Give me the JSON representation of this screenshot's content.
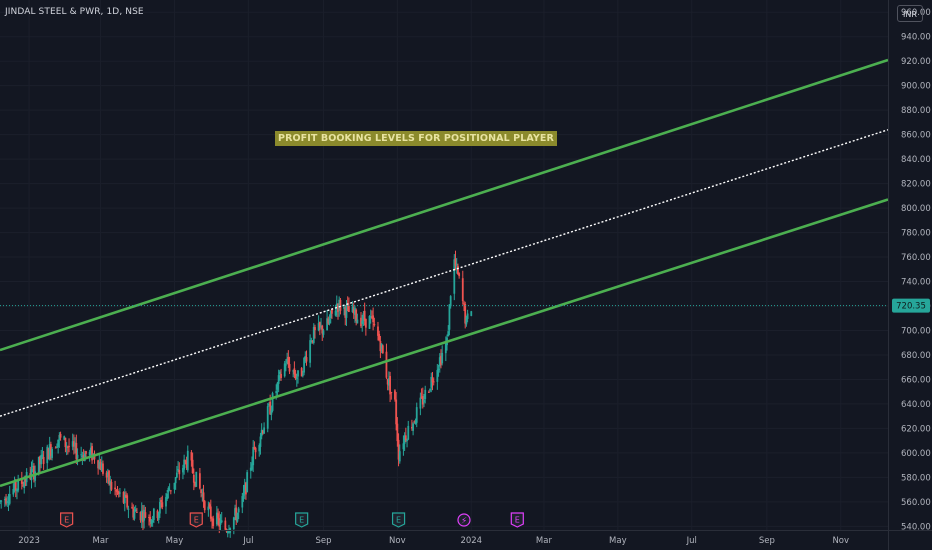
{
  "header": {
    "symbol_title": "JINDAL STEEL & PWR, 1D, NSE",
    "currency": "INR"
  },
  "annotation": {
    "text": "PROFIT BOOKING LEVELS FOR POSITIONAL PLAYER",
    "color": "#8b8a2c"
  },
  "colors": {
    "background": "#131722",
    "up": "#26a69a",
    "down": "#ef5350",
    "channel_line": "#4caf50",
    "mid_line": "#ffffff",
    "price_badge": "#26a69a"
  },
  "event_markers": [
    {
      "type": "earnings",
      "label": "E",
      "color": "#ef5350",
      "date": "2023-02-01"
    },
    {
      "type": "earnings",
      "label": "E",
      "color": "#ef5350",
      "date": "2023-05-19"
    },
    {
      "type": "earnings",
      "label": "E",
      "color": "#26a69a",
      "date": "2023-08-14"
    },
    {
      "type": "earnings",
      "label": "E",
      "color": "#26a69a",
      "date": "2023-11-02"
    },
    {
      "type": "split",
      "label": "⚡",
      "color": "#e040fb",
      "date": "2023-12-26"
    },
    {
      "type": "earnings",
      "label": "E",
      "color": "#e040fb",
      "date": "2024-02-08"
    }
  ],
  "chart_data": {
    "type": "candlestick",
    "title": "JINDAL STEEL & PWR, 1D, NSE",
    "y_axis": {
      "ticks": [
        540,
        560,
        580,
        600,
        620,
        640,
        660,
        680,
        700,
        720,
        740,
        760,
        780,
        800,
        820,
        840,
        860,
        880,
        900,
        920,
        940,
        960
      ],
      "range": [
        537,
        970
      ],
      "side": "right"
    },
    "x_axis": {
      "tick_labels": [
        "2023",
        "Mar",
        "May",
        "Jul",
        "Sep",
        "Nov",
        "2024",
        "Mar",
        "May",
        "Jul",
        "Sep",
        "Nov"
      ],
      "tick_dates": [
        "2023-01-01",
        "2023-03-01",
        "2023-05-01",
        "2023-07-01",
        "2023-09-01",
        "2023-11-01",
        "2024-01-01",
        "2024-03-01",
        "2024-05-01",
        "2024-07-01",
        "2024-09-01",
        "2024-11-01"
      ],
      "range": [
        "2022-12-08",
        "2024-12-10"
      ]
    },
    "last_price": 720.35,
    "price_path": [
      [
        "2022-12-08",
        560
      ],
      [
        "2023-01-05",
        585
      ],
      [
        "2023-01-25",
        612
      ],
      [
        "2023-02-10",
        600
      ],
      [
        "2023-02-25",
        598
      ],
      [
        "2023-03-10",
        572
      ],
      [
        "2023-03-28",
        552
      ],
      [
        "2023-04-15",
        548
      ],
      [
        "2023-05-01",
        578
      ],
      [
        "2023-05-12",
        595
      ],
      [
        "2023-05-30",
        550
      ],
      [
        "2023-06-12",
        538
      ],
      [
        "2023-06-25",
        555
      ],
      [
        "2023-07-05",
        600
      ],
      [
        "2023-07-20",
        640
      ],
      [
        "2023-08-01",
        675
      ],
      [
        "2023-08-12",
        660
      ],
      [
        "2023-08-22",
        695
      ],
      [
        "2023-09-05",
        705
      ],
      [
        "2023-09-12",
        722
      ],
      [
        "2023-09-22",
        715
      ],
      [
        "2023-10-01",
        710
      ],
      [
        "2023-10-10",
        708
      ],
      [
        "2023-10-18",
        690
      ],
      [
        "2023-10-24",
        660
      ],
      [
        "2023-10-30",
        640
      ],
      [
        "2023-11-02",
        600
      ],
      [
        "2023-11-06",
        612
      ],
      [
        "2023-11-15",
        628
      ],
      [
        "2023-11-25",
        650
      ],
      [
        "2023-12-04",
        672
      ],
      [
        "2023-12-12",
        690
      ],
      [
        "2023-12-17",
        760
      ],
      [
        "2023-12-22",
        740
      ],
      [
        "2023-12-28",
        705
      ],
      [
        "2024-01-01",
        720
      ]
    ],
    "lines": [
      {
        "name": "upper channel",
        "style": "solid",
        "points": [
          [
            "2022-12-08",
            684
          ],
          [
            "2024-12-10",
            921
          ]
        ]
      },
      {
        "name": "middle line",
        "style": "dotted",
        "points": [
          [
            "2022-12-08",
            630
          ],
          [
            "2024-12-10",
            864
          ]
        ]
      },
      {
        "name": "lower channel",
        "style": "solid",
        "points": [
          [
            "2022-12-08",
            573
          ],
          [
            "2024-12-10",
            807
          ]
        ]
      }
    ]
  }
}
